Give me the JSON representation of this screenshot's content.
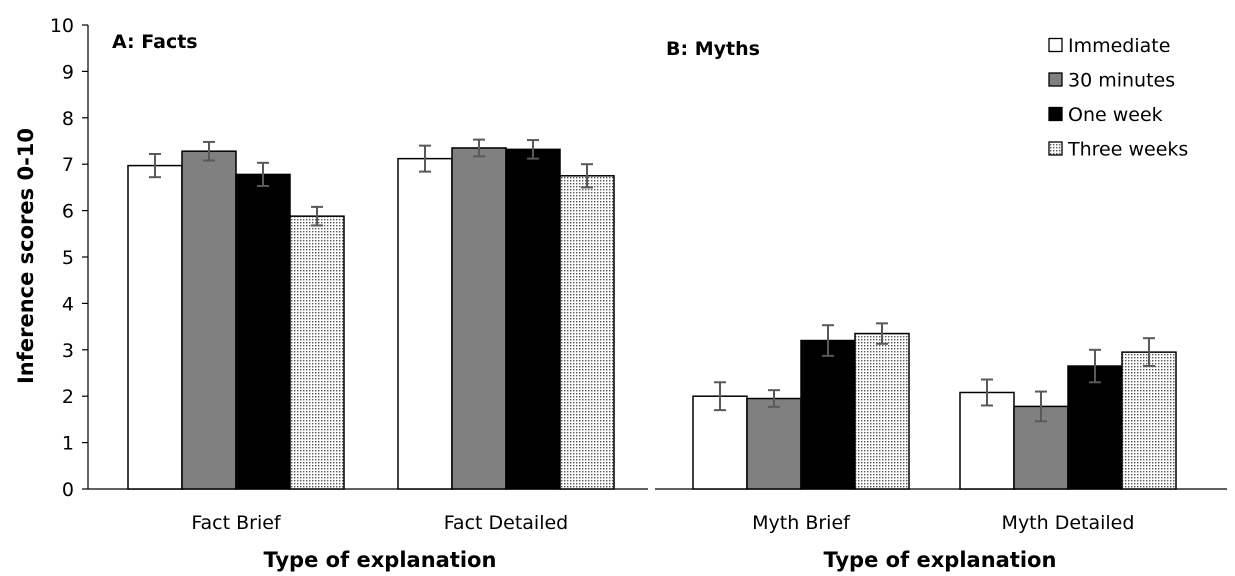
{
  "chart_data": {
    "type": "bar",
    "ylabel": "Inference scores 0-10",
    "ylim": [
      0,
      10
    ],
    "yticks": [
      0,
      1,
      2,
      3,
      4,
      5,
      6,
      7,
      8,
      9,
      10
    ],
    "grid": false,
    "legend_position": "top-right",
    "series": [
      {
        "name": "Immediate",
        "fill": "#ffffff",
        "pattern": "solid"
      },
      {
        "name": "30 minutes",
        "fill": "#808080",
        "pattern": "solid"
      },
      {
        "name": "One week",
        "fill": "#000000",
        "pattern": "solid"
      },
      {
        "name": "Three weeks",
        "fill": "#ffffff",
        "pattern": "dotted"
      }
    ],
    "panels": [
      {
        "title": "A: Facts",
        "xlabel": "Type of explanation",
        "categories": [
          "Fact Brief",
          "Fact Detailed"
        ],
        "values": [
          [
            6.97,
            7.28,
            6.78,
            5.88
          ],
          [
            7.12,
            7.35,
            7.32,
            6.75
          ]
        ],
        "errors": [
          [
            0.25,
            0.2,
            0.25,
            0.2
          ],
          [
            0.28,
            0.18,
            0.2,
            0.25
          ]
        ]
      },
      {
        "title": "B: Myths",
        "xlabel": "Type of explanation",
        "categories": [
          "Myth Brief",
          "Myth Detailed"
        ],
        "values": [
          [
            2.0,
            1.95,
            3.2,
            3.35
          ],
          [
            2.08,
            1.78,
            2.65,
            2.95
          ]
        ],
        "errors": [
          [
            0.3,
            0.18,
            0.33,
            0.22
          ],
          [
            0.28,
            0.32,
            0.35,
            0.3
          ]
        ]
      }
    ]
  }
}
